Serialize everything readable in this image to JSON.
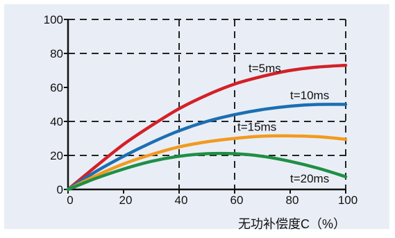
{
  "chart_data": {
    "type": "line",
    "title": "",
    "xlabel": "无功补偿度C（%）",
    "ylabel": "",
    "xlim": [
      0,
      100
    ],
    "ylim": [
      0,
      100
    ],
    "x_ticks": [
      "0",
      "20",
      "40",
      "60",
      "80",
      "100"
    ],
    "y_ticks": [
      "0",
      "20",
      "40",
      "60",
      "80",
      "100"
    ],
    "grid": "dashed, at x = 40, 60, 100 and y = 20, 40, 80, 100",
    "grid_x": [
      40,
      60,
      100
    ],
    "grid_y": [
      20,
      40,
      80,
      100
    ],
    "x": [
      0,
      10,
      20,
      30,
      40,
      50,
      60,
      70,
      80,
      90,
      100
    ],
    "series": [
      {
        "name": "t=5ms",
        "color": "#d42027",
        "values": [
          0,
          13.5,
          26.5,
          37.5,
          47.5,
          55.5,
          62,
          66.5,
          70,
          72,
          73
        ]
      },
      {
        "name": "t=10ms",
        "color": "#1c6fb2",
        "values": [
          0,
          10.5,
          19.5,
          27.5,
          34.5,
          40,
          44,
          47,
          49,
          50,
          50
        ]
      },
      {
        "name": "t=15ms",
        "color": "#f29a1f",
        "values": [
          0,
          8,
          15,
          20.5,
          25,
          28,
          30,
          31.3,
          31.5,
          31,
          29.5
        ]
      },
      {
        "name": "t=20ms",
        "color": "#1f8f45",
        "values": [
          0,
          6.5,
          12,
          16.5,
          19.5,
          21,
          21,
          19.5,
          16.5,
          12.5,
          7.5
        ]
      }
    ]
  },
  "colors": {
    "panel_background": "#e9eef6",
    "axis": "#111111",
    "grid": "#222222"
  }
}
